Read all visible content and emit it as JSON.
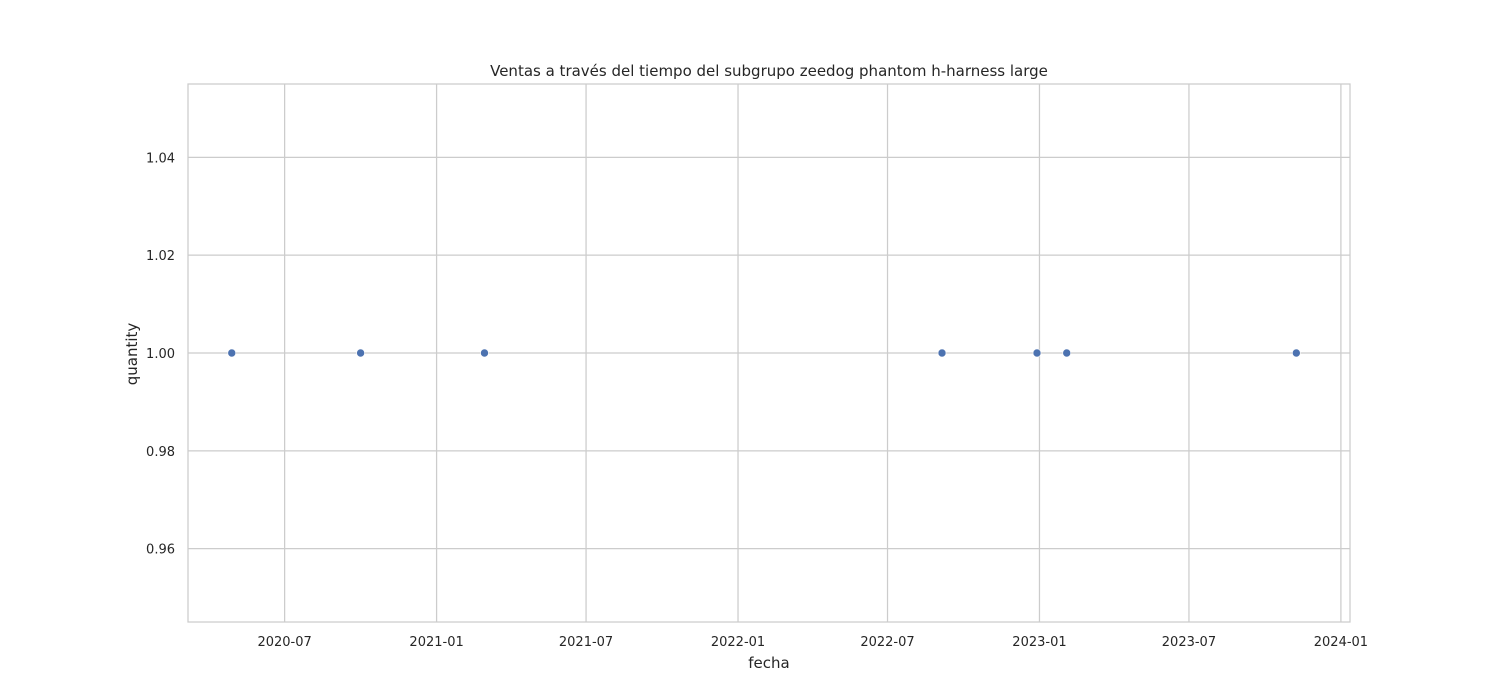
{
  "chart_data": {
    "type": "scatter",
    "title": "Ventas a través del tiempo del subgrupo zeedog phantom h-harness large",
    "xlabel": "fecha",
    "ylabel": "quantity",
    "x_type": "date",
    "xlim": [
      "2020-03-06",
      "2024-01-12"
    ],
    "ylim": [
      0.945,
      1.055
    ],
    "x_ticks": [
      "2020-07-01",
      "2021-01-01",
      "2021-07-01",
      "2022-01-01",
      "2022-07-01",
      "2023-01-01",
      "2023-07-01",
      "2024-01-01"
    ],
    "x_tick_labels": [
      "2020-07",
      "2021-01",
      "2021-07",
      "2022-01",
      "2022-07",
      "2023-01",
      "2023-07",
      "2024-01"
    ],
    "y_ticks": [
      0.96,
      0.98,
      1.0,
      1.02,
      1.04
    ],
    "y_tick_labels": [
      "0.96",
      "0.98",
      "1.00",
      "1.02",
      "1.04"
    ],
    "grid": true,
    "legend": false,
    "points": [
      {
        "x": "2020-04-28",
        "y": 1.0
      },
      {
        "x": "2020-10-01",
        "y": 1.0
      },
      {
        "x": "2021-02-28",
        "y": 1.0
      },
      {
        "x": "2022-09-05",
        "y": 1.0
      },
      {
        "x": "2022-12-29",
        "y": 1.0
      },
      {
        "x": "2023-02-03",
        "y": 1.0
      },
      {
        "x": "2023-11-08",
        "y": 1.0
      }
    ],
    "colors": {
      "point": "#4c72b0",
      "grid": "#cccccc",
      "frame": "#cccccc",
      "text": "#262626"
    }
  }
}
